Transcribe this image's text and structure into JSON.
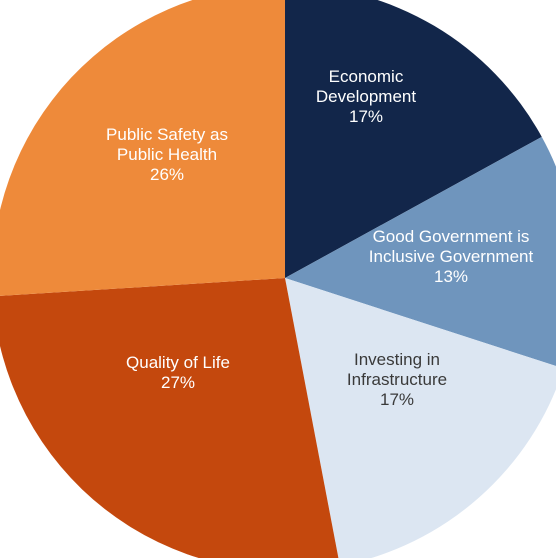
{
  "chart_data": {
    "type": "pie",
    "title": "",
    "slices": [
      {
        "lines": [
          "Economic",
          "Development"
        ],
        "pct_label": "17%",
        "value": 17,
        "color": "#12264a",
        "text_color": "#ffffff"
      },
      {
        "lines": [
          "Good Government is",
          "Inclusive Government"
        ],
        "pct_label": "13%",
        "value": 13,
        "color": "#6f95bd",
        "text_color": "#ffffff"
      },
      {
        "lines": [
          "Investing in",
          "Infrastructure"
        ],
        "pct_label": "17%",
        "value": 17,
        "color": "#dce6f2",
        "text_color": "#3a3a3a"
      },
      {
        "lines": [
          "Quality of Life"
        ],
        "pct_label": "27%",
        "value": 27,
        "color": "#c4480d",
        "text_color": "#ffffff"
      },
      {
        "lines": [
          "Public Safety as",
          "Public Health"
        ],
        "pct_label": "26%",
        "value": 26,
        "color": "#ee8a3a",
        "text_color": "#ffffff"
      }
    ]
  }
}
